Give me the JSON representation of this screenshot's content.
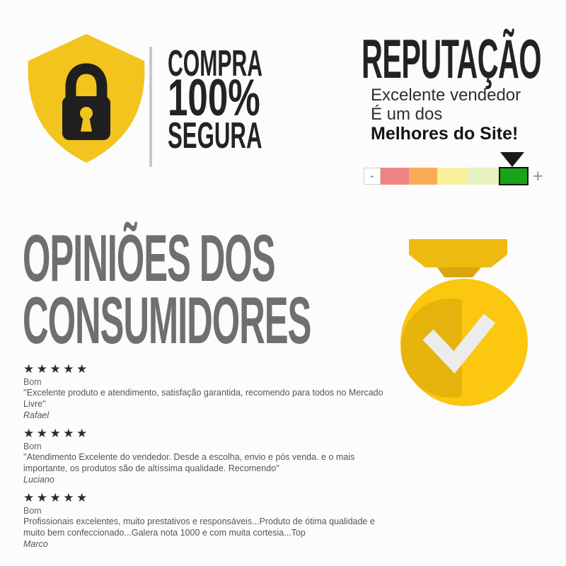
{
  "colors": {
    "shield_yellow": "#F2C41D",
    "lock_black": "#1F1F1F",
    "divider_gray": "#C9C9C9",
    "heading_black": "#232323",
    "text_dark": "#2F2F2F",
    "title_gray": "#6F6F6F",
    "medal_gold": "#FBC70F",
    "medal_shadow": "#E5B30C",
    "ribbon_gold": "#EFBA10",
    "ribbon_dark": "#D9A70C",
    "check_white": "#ECECEC",
    "star_black": "#2B2B2B",
    "review_text": "#555555",
    "marker_black": "#191919",
    "scale_green": "#18A418"
  },
  "secure_badge": {
    "line1": "COMPRA",
    "line2": "100%",
    "line3": "SEGURA"
  },
  "reputation": {
    "title": "REPUTAÇÃO",
    "subtitle1": "Excelente vendedor",
    "subtitle2": "É um dos",
    "subtitle3": "Melhores do Site!",
    "scale": {
      "minus_label": "-",
      "plus_label": "+",
      "segments": [
        "#FFFFFF",
        "#EE8383",
        "#F7AC55",
        "#F8F09A",
        "#E6F1C0",
        "#18A418"
      ],
      "selected_index": 5
    }
  },
  "opinions": {
    "title_line1": "OPINIÕES DOS",
    "title_line2": "CONSUMIDORES"
  },
  "reviews": [
    {
      "stars": "★★★★★",
      "rating_label": "Bom",
      "quote": "''Excelente produto e atendimento, satisfação garantida, recomendo para todos no Mercado Livre''",
      "author": "Rafael"
    },
    {
      "stars": "★★★★★",
      "rating_label": "Bom",
      "quote": "''Atendimento Excelente do vendedor. Desde a escolha, envio e pós venda. e o mais importante, os produtos são de altíssima qualidade. Recomendo''",
      "author": "Luciano"
    },
    {
      "stars": "★★★★★",
      "rating_label": "Bom",
      "quote": "Profissionais excelentes, muito prestativos e responsáveis...Produto de ótima qualidade e muito bem confeccionado...Galera nota 1000 e com muita cortesia...Top",
      "author": "Marco"
    }
  ]
}
